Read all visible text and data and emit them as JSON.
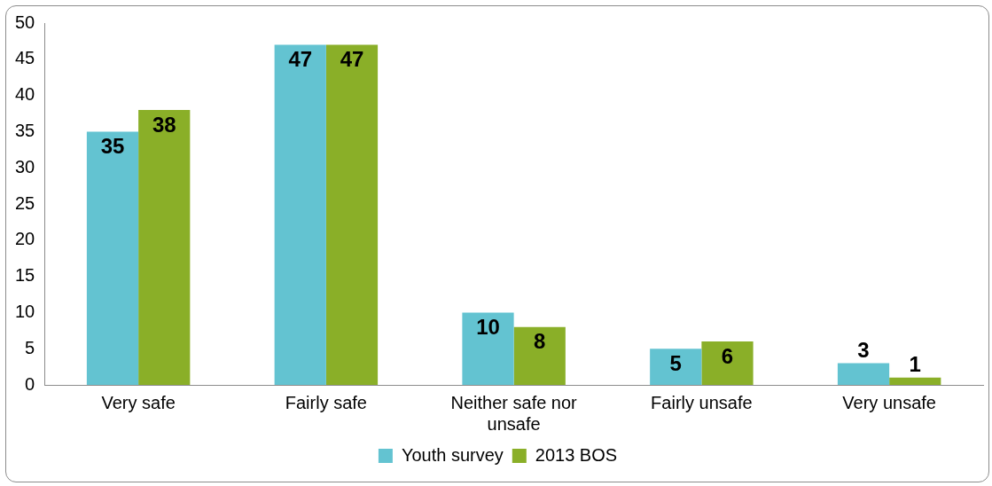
{
  "chart_data": {
    "type": "bar",
    "categories": [
      "Very safe",
      "Fairly safe",
      "Neither safe nor unsafe",
      "Fairly unsafe",
      "Very unsafe"
    ],
    "series": [
      {
        "name": "Youth survey",
        "color": "#63c3d1",
        "values": [
          35,
          47,
          10,
          5,
          3
        ]
      },
      {
        "name": "2013 BOS",
        "color": "#8aaf28",
        "values": [
          38,
          47,
          8,
          6,
          1
        ]
      }
    ],
    "ylim": [
      0,
      50
    ],
    "yticks": [
      0,
      5,
      10,
      15,
      20,
      25,
      30,
      35,
      40,
      45,
      50
    ],
    "grid": false,
    "legend": "bottom",
    "data_labels": true
  }
}
